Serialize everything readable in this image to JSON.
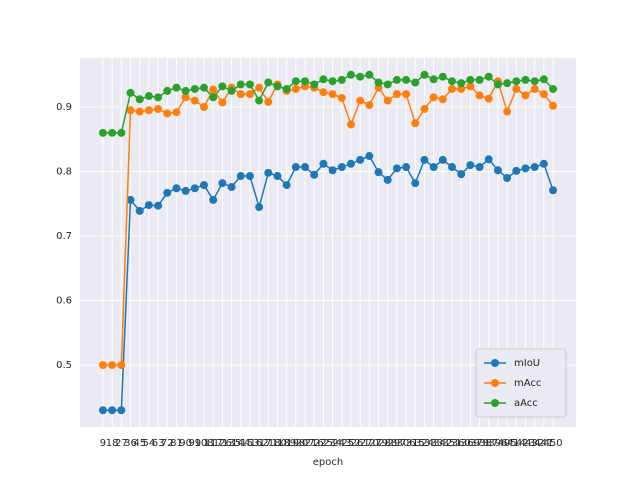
{
  "chart_data": {
    "type": "line",
    "xlabel": "epoch",
    "categories": [
      9,
      18,
      27,
      36,
      45,
      54,
      63,
      72,
      81,
      90,
      99,
      108,
      117,
      126,
      135,
      144,
      153,
      162,
      171,
      180,
      189,
      198,
      207,
      216,
      225,
      234,
      243,
      252,
      261,
      270,
      279,
      288,
      297,
      306,
      315,
      324,
      333,
      342,
      351,
      360,
      369,
      378,
      387,
      396,
      405,
      414,
      423,
      432,
      441,
      450
    ],
    "series": [
      {
        "name": "mIoU",
        "color": "#1f77b4",
        "values": [
          0.43,
          0.43,
          0.43,
          0.756,
          0.739,
          0.748,
          0.747,
          0.767,
          0.774,
          0.77,
          0.774,
          0.779,
          0.756,
          0.782,
          0.776,
          0.793,
          0.793,
          0.745,
          0.798,
          0.793,
          0.779,
          0.807,
          0.807,
          0.795,
          0.812,
          0.802,
          0.807,
          0.812,
          0.818,
          0.824,
          0.799,
          0.787,
          0.805,
          0.807,
          0.782,
          0.818,
          0.807,
          0.818,
          0.807,
          0.796,
          0.81,
          0.807,
          0.819,
          0.802,
          0.79,
          0.801,
          0.805,
          0.807,
          0.812,
          0.771
        ]
      },
      {
        "name": "mAcc",
        "color": "#ff7f0e",
        "values": [
          0.5,
          0.5,
          0.5,
          0.895,
          0.893,
          0.895,
          0.897,
          0.89,
          0.892,
          0.915,
          0.91,
          0.9,
          0.927,
          0.907,
          0.93,
          0.92,
          0.92,
          0.93,
          0.908,
          0.935,
          0.925,
          0.928,
          0.932,
          0.93,
          0.923,
          0.92,
          0.914,
          0.873,
          0.91,
          0.903,
          0.93,
          0.91,
          0.92,
          0.92,
          0.875,
          0.897,
          0.915,
          0.912,
          0.928,
          0.928,
          0.932,
          0.918,
          0.913,
          0.94,
          0.893,
          0.928,
          0.918,
          0.928,
          0.92,
          0.902
        ]
      },
      {
        "name": "aAcc",
        "color": "#2ca02c",
        "values": [
          0.86,
          0.86,
          0.86,
          0.922,
          0.912,
          0.917,
          0.915,
          0.925,
          0.93,
          0.925,
          0.928,
          0.93,
          0.915,
          0.932,
          0.925,
          0.935,
          0.935,
          0.91,
          0.938,
          0.932,
          0.928,
          0.94,
          0.94,
          0.935,
          0.943,
          0.94,
          0.942,
          0.95,
          0.947,
          0.95,
          0.938,
          0.935,
          0.942,
          0.942,
          0.938,
          0.95,
          0.943,
          0.947,
          0.94,
          0.937,
          0.942,
          0.942,
          0.947,
          0.935,
          0.937,
          0.94,
          0.942,
          0.94,
          0.943,
          0.928
        ]
      }
    ],
    "ylim": [
      0.404,
      0.976
    ],
    "yticks": [
      {
        "value": 0.5,
        "label": "0.5"
      },
      {
        "value": 0.6,
        "label": "0.6"
      },
      {
        "value": 0.7,
        "label": "0.7"
      },
      {
        "value": 0.8,
        "label": "0.8"
      },
      {
        "value": 0.9,
        "label": "0.9"
      }
    ],
    "grid": true,
    "legend": "lower right"
  }
}
